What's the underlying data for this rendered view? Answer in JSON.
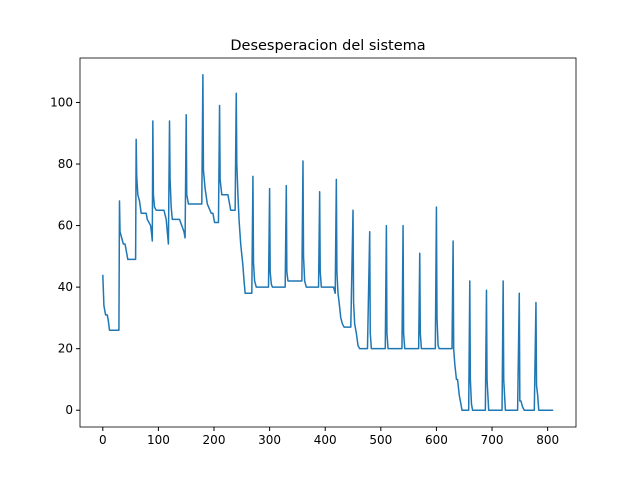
{
  "chart_data": {
    "type": "line",
    "title": "Desesperacion del sistema",
    "x": [
      0,
      2,
      5,
      8,
      10,
      12,
      29,
      30,
      31,
      34,
      37,
      40,
      43,
      45,
      59,
      60,
      61,
      63,
      66,
      69,
      78,
      80,
      86,
      88,
      89,
      90,
      91,
      93,
      96,
      110,
      114,
      118,
      120,
      121,
      123,
      125,
      138,
      146,
      148,
      150,
      151,
      154,
      178,
      180,
      181,
      184,
      188,
      195,
      198,
      201,
      208,
      210,
      211,
      214,
      225,
      228,
      230,
      238,
      240,
      241,
      243,
      245,
      248,
      252,
      254,
      256,
      268,
      270,
      271,
      273,
      276,
      298,
      300,
      301,
      303,
      305,
      328,
      330,
      331,
      333,
      358,
      360,
      361,
      363,
      366,
      388,
      390,
      391,
      393,
      415,
      418,
      420,
      421,
      423,
      425,
      428,
      431,
      434,
      446,
      450,
      451,
      453,
      456,
      459,
      462,
      476,
      480,
      481,
      483,
      508,
      510,
      511,
      513,
      538,
      540,
      541,
      543,
      568,
      570,
      571,
      573,
      598,
      600,
      601,
      603,
      605,
      628,
      630,
      631,
      633,
      636,
      638,
      641,
      643,
      646,
      658,
      660,
      661,
      663,
      665,
      688,
      690,
      691,
      694,
      718,
      720,
      721,
      724,
      746,
      749,
      750,
      752,
      755,
      758,
      776,
      779,
      780,
      782,
      784,
      810
    ],
    "series": [
      {
        "name": "line",
        "color": "#1f77b4",
        "values": [
          44,
          34,
          31,
          31,
          29,
          26,
          26,
          68,
          58,
          56,
          54,
          54,
          51,
          49,
          49,
          88,
          76,
          70,
          68,
          64,
          64,
          62,
          60,
          57,
          55,
          94,
          70,
          66,
          65,
          65,
          62,
          54,
          94,
          75,
          66,
          62,
          62,
          58,
          56,
          96,
          70,
          67,
          67,
          109,
          78,
          72,
          67,
          64,
          64,
          61,
          61,
          99,
          75,
          70,
          70,
          67,
          65,
          65,
          103,
          80,
          70,
          62,
          54,
          47,
          42,
          38,
          38,
          76,
          48,
          42,
          40,
          40,
          72,
          45,
          41,
          40,
          40,
          73,
          45,
          42,
          42,
          81,
          50,
          42,
          40,
          40,
          71,
          45,
          40,
          40,
          38,
          75,
          45,
          38,
          35,
          30,
          28,
          27,
          27,
          65,
          35,
          28,
          25,
          21,
          20,
          20,
          58,
          25,
          20,
          20,
          60,
          25,
          20,
          20,
          60,
          25,
          20,
          20,
          51,
          25,
          20,
          20,
          66,
          30,
          21,
          20,
          20,
          55,
          20,
          15,
          10,
          10,
          5,
          3,
          0,
          0,
          42,
          10,
          2,
          0,
          0,
          39,
          10,
          0,
          0,
          42,
          10,
          0,
          0,
          38,
          3,
          3,
          1,
          0,
          0,
          35,
          8,
          5,
          0,
          0
        ]
      }
    ],
    "xlim": [
      -41,
      851
    ],
    "ylim": [
      -5.45,
      114.45
    ],
    "xticks": [
      0,
      100,
      200,
      300,
      400,
      500,
      600,
      700,
      800
    ],
    "yticks": [
      0,
      20,
      40,
      60,
      80,
      100
    ]
  }
}
